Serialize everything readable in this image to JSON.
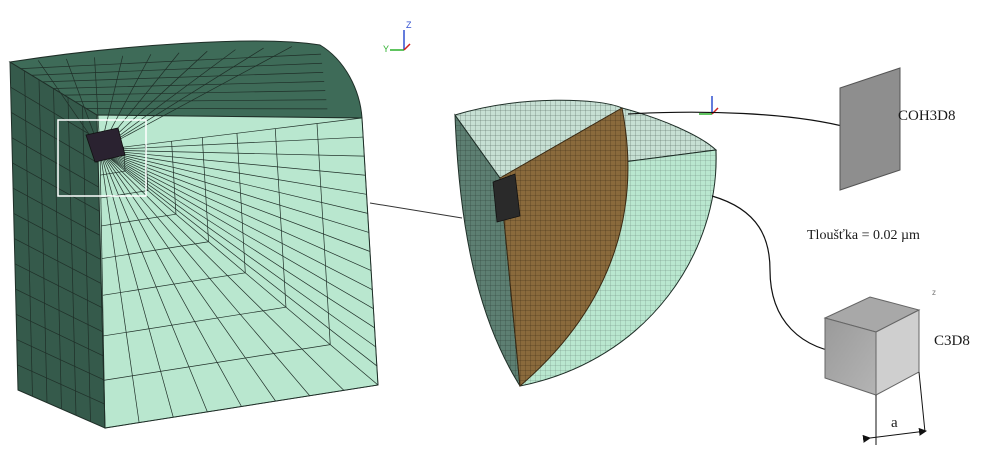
{
  "labels": {
    "coh_element": "COH3D8",
    "thickness": "Tloušťka = 0.02 µm",
    "solid_element": "C3D8",
    "edge_length": "a"
  },
  "axis_triad": {
    "axis_z": "Z",
    "axis_y": "Y"
  },
  "colors": {
    "mesh_face_light": "#b9e7cf",
    "mesh_face_dark": "#355a4b",
    "mesh_lines": "#1f2f28",
    "core_mesh": "#8a6a3c",
    "element_gray": "#8e8e8e",
    "axis_green": "#2bb02b",
    "axis_blue": "#3050d0",
    "axis_red": "#d02020"
  }
}
